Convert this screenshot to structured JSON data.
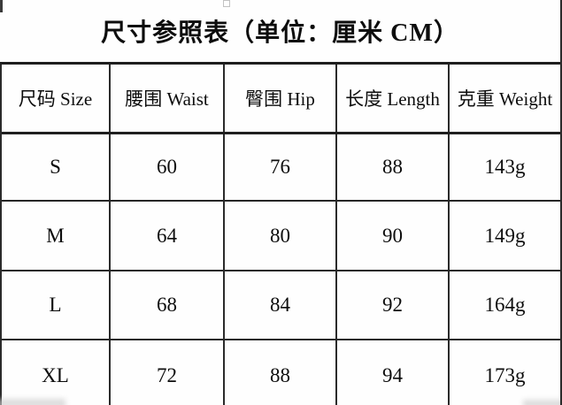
{
  "colors": {
    "background": "#fefefe",
    "text": "#0d0d0d",
    "grid_line": "#2b2b2b"
  },
  "chart_data": {
    "type": "table",
    "title": "尺寸参照表（单位：厘米 CM）",
    "columns": [
      "尺码 Size",
      "腰围 Waist",
      "臀围 Hip",
      "长度 Length",
      "克重 Weight"
    ],
    "rows": [
      [
        "S",
        "60",
        "76",
        "88",
        "143g"
      ],
      [
        "M",
        "64",
        "80",
        "90",
        "149g"
      ],
      [
        "L",
        "68",
        "84",
        "92",
        "164g"
      ],
      [
        "XL",
        "72",
        "88",
        "94",
        "173g"
      ]
    ]
  }
}
